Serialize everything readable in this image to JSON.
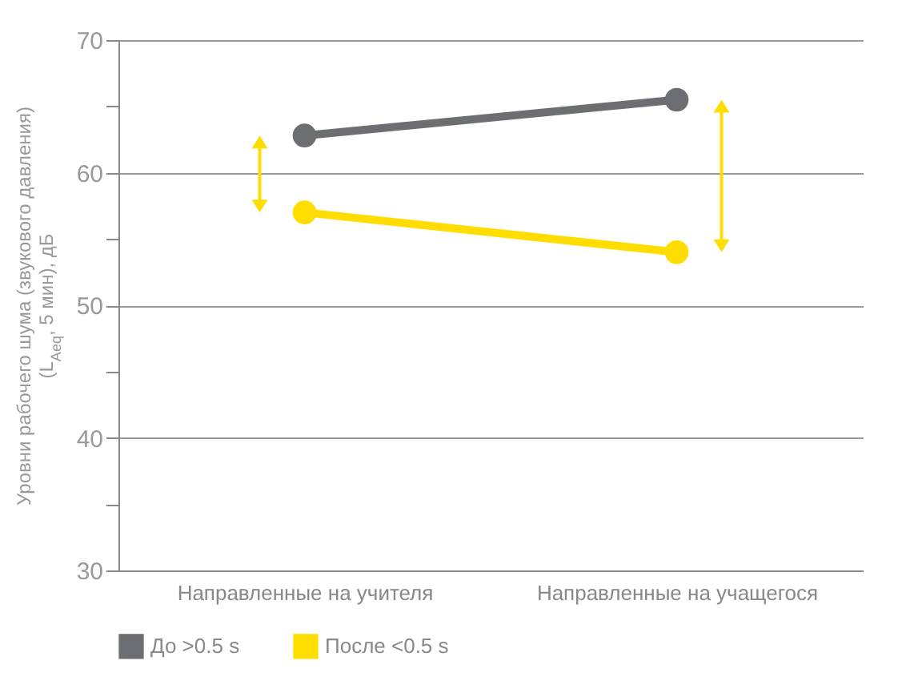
{
  "chart_data": {
    "type": "line",
    "ylabel": "Уровни рабочего шума (звукового давления)\n(L$_{Aeq}$, 5 мин), дБ",
    "categories": [
      "Направленные на учителя",
      "Направленные на учащегося"
    ],
    "series": [
      {
        "name": "До >0.5 s",
        "color": "#6d6e71",
        "values": [
          62.8,
          65.5
        ]
      },
      {
        "name": "После <0.5 s",
        "color": "#ffdd00",
        "values": [
          57.0,
          54.0
        ]
      }
    ],
    "ylim": [
      30,
      70
    ],
    "yticks": [
      30,
      {
        "value": 35,
        "label": null
      },
      40,
      {
        "value": 45,
        "label": null
      },
      50,
      {
        "value": 55,
        "label": null
      },
      60,
      {
        "value": 65,
        "label": null
      },
      70
    ],
    "grid": "y",
    "legend": "bottom left",
    "marker": "circle",
    "line_style": "solid"
  }
}
